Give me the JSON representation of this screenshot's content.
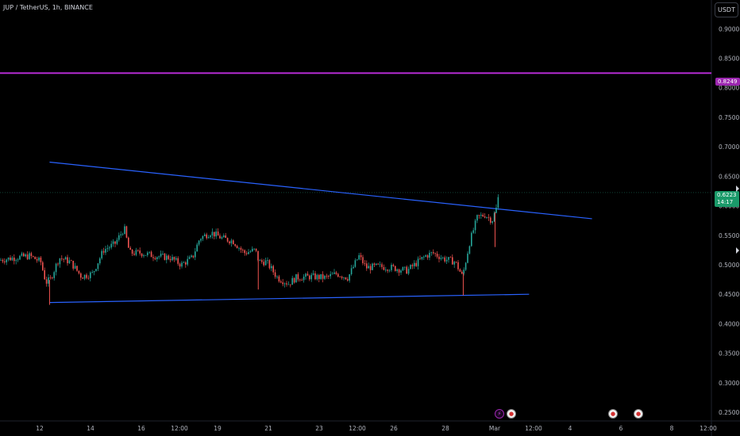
{
  "header": {
    "symbol_title": "JUP / TetherUS, 1h, BINANCE",
    "currency": "USDT"
  },
  "price_tags": {
    "horizontal_line": "0.8249",
    "last_price": "0.6223",
    "countdown": "14:17"
  },
  "colors": {
    "up": "#26a69a",
    "down": "#ef5350",
    "trendline": "#2962ff",
    "horizontal": "#b32bd1"
  },
  "events": {
    "bolt_icon": "⚡",
    "flag_icon": "●"
  },
  "chart_data": {
    "type": "candlestick",
    "ylim": [
      0.25,
      0.93
    ],
    "y_ticks": [
      "0.9000",
      "0.8500",
      "0.8000",
      "0.7500",
      "0.7000",
      "0.6500",
      "0.6000",
      "0.5500",
      "0.5000",
      "0.4500",
      "0.4000",
      "0.3500",
      "0.3000",
      "0.2500"
    ],
    "x_ticks": [
      "12",
      "14",
      "16",
      "12:00",
      "19",
      "21",
      "23",
      "12:00",
      "26",
      "28",
      "Mar",
      "12:00",
      "4",
      "6",
      "8",
      "12:00"
    ],
    "horizontal_line": 0.8249,
    "last_price": 0.6223,
    "trendlines": [
      {
        "name": "upper",
        "from": [
          0.067,
          0.674
        ],
        "to": [
          0.8,
          0.578
        ]
      },
      {
        "name": "lower",
        "from": [
          0.067,
          0.436
        ],
        "to": [
          0.715,
          0.45
        ]
      }
    ],
    "price_path": [
      [
        0.0,
        0.508
      ],
      [
        0.02,
        0.512
      ],
      [
        0.04,
        0.515
      ],
      [
        0.055,
        0.505
      ],
      [
        0.062,
        0.47
      ],
      [
        0.068,
        0.475
      ],
      [
        0.08,
        0.512
      ],
      [
        0.095,
        0.505
      ],
      [
        0.11,
        0.48
      ],
      [
        0.125,
        0.485
      ],
      [
        0.14,
        0.525
      ],
      [
        0.155,
        0.535
      ],
      [
        0.168,
        0.562
      ],
      [
        0.175,
        0.52
      ],
      [
        0.19,
        0.52
      ],
      [
        0.21,
        0.515
      ],
      [
        0.23,
        0.512
      ],
      [
        0.245,
        0.5
      ],
      [
        0.26,
        0.512
      ],
      [
        0.27,
        0.545
      ],
      [
        0.285,
        0.555
      ],
      [
        0.3,
        0.545
      ],
      [
        0.315,
        0.54
      ],
      [
        0.33,
        0.52
      ],
      [
        0.345,
        0.525
      ],
      [
        0.35,
        0.505
      ],
      [
        0.36,
        0.505
      ],
      [
        0.375,
        0.478
      ],
      [
        0.39,
        0.468
      ],
      [
        0.4,
        0.478
      ],
      [
        0.42,
        0.48
      ],
      [
        0.44,
        0.478
      ],
      [
        0.455,
        0.485
      ],
      [
        0.47,
        0.478
      ],
      [
        0.485,
        0.515
      ],
      [
        0.495,
        0.495
      ],
      [
        0.51,
        0.497
      ],
      [
        0.53,
        0.495
      ],
      [
        0.55,
        0.49
      ],
      [
        0.56,
        0.5
      ],
      [
        0.575,
        0.515
      ],
      [
        0.585,
        0.52
      ],
      [
        0.6,
        0.51
      ],
      [
        0.615,
        0.505
      ],
      [
        0.625,
        0.48
      ],
      [
        0.635,
        0.54
      ],
      [
        0.645,
        0.58
      ],
      [
        0.655,
        0.585
      ],
      [
        0.665,
        0.575
      ],
      [
        0.672,
        0.6
      ],
      [
        0.674,
        0.6223
      ]
    ],
    "spikes": [
      {
        "x": 0.067,
        "low": 0.432
      },
      {
        "x": 0.349,
        "low": 0.458
      },
      {
        "x": 0.626,
        "low": 0.448
      },
      {
        "x": 0.669,
        "low": 0.53
      }
    ]
  }
}
